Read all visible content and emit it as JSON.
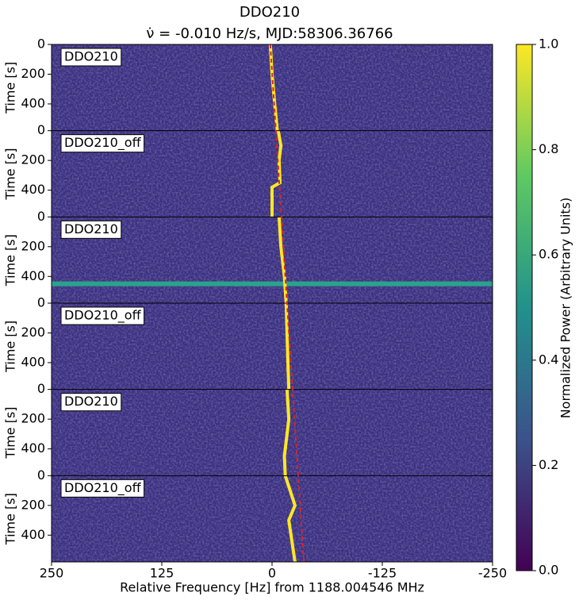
{
  "chart_data": {
    "type": "waterfall",
    "title": "DDO210",
    "subtitle": "ν̇ = -0.010 Hz/s, MJD:58306.36766",
    "xlabel": "Relative Frequency [Hz] from 1188.004546 MHz",
    "xlim": [
      250,
      -250
    ],
    "xticks": [
      250,
      125,
      0,
      -125,
      -250
    ],
    "ylim": [
      0,
      580
    ],
    "yticks": [
      0,
      200,
      400
    ],
    "signal_color": "#fde725",
    "rfi_color": "#2aa38a",
    "drift_line": {
      "color": "#d62728",
      "x": [
        2,
        -36
      ]
    },
    "panels": [
      {
        "label": "DDO210",
        "ylabel": "Time [s]",
        "signal": {
          "t": [
            0,
            200,
            400,
            580
          ],
          "f": [
            2,
            0,
            -3,
            -6
          ]
        }
      },
      {
        "label": "DDO210_off",
        "ylabel": "Time [s]",
        "signal": {
          "t": [
            0,
            100,
            200,
            350,
            380,
            580
          ],
          "f": [
            -7,
            -10,
            -8,
            -9,
            0,
            0
          ]
        }
      },
      {
        "label": "DDO210",
        "ylabel": "Time [s]",
        "signal": {
          "t": [
            0,
            200,
            400,
            580
          ],
          "f": [
            -8,
            -10,
            -14,
            -16
          ]
        },
        "rfi_t": 450
      },
      {
        "label": "DDO210_off",
        "ylabel": "Time [s]",
        "signal": {
          "t": [
            0,
            200,
            400,
            580
          ],
          "f": [
            -16,
            -17,
            -18,
            -19
          ]
        }
      },
      {
        "label": "DDO210",
        "ylabel": "Time [s]",
        "signal": {
          "t": [
            0,
            200,
            450,
            580
          ],
          "f": [
            -17,
            -19,
            -14,
            -15
          ]
        }
      },
      {
        "label": "DDO210_off",
        "ylabel": "Time [s]",
        "signal": {
          "t": [
            0,
            200,
            300,
            580
          ],
          "f": [
            -15,
            -26,
            -19,
            -26
          ]
        }
      }
    ],
    "colorbar": {
      "label": "Normalized Power (Arbitrary Units)",
      "lim": [
        0,
        1
      ],
      "ticks": [
        {
          "value": 0,
          "label": "0.0"
        },
        {
          "value": 0.2,
          "label": "0.2"
        },
        {
          "value": 0.4,
          "label": "0.4"
        },
        {
          "value": 0.6,
          "label": "0.6"
        },
        {
          "value": 0.8,
          "label": "0.8"
        },
        {
          "value": 1,
          "label": "1.0"
        }
      ],
      "colormap": [
        "#440154",
        "#3b528b",
        "#21918c",
        "#5ec962",
        "#fde725"
      ]
    }
  }
}
